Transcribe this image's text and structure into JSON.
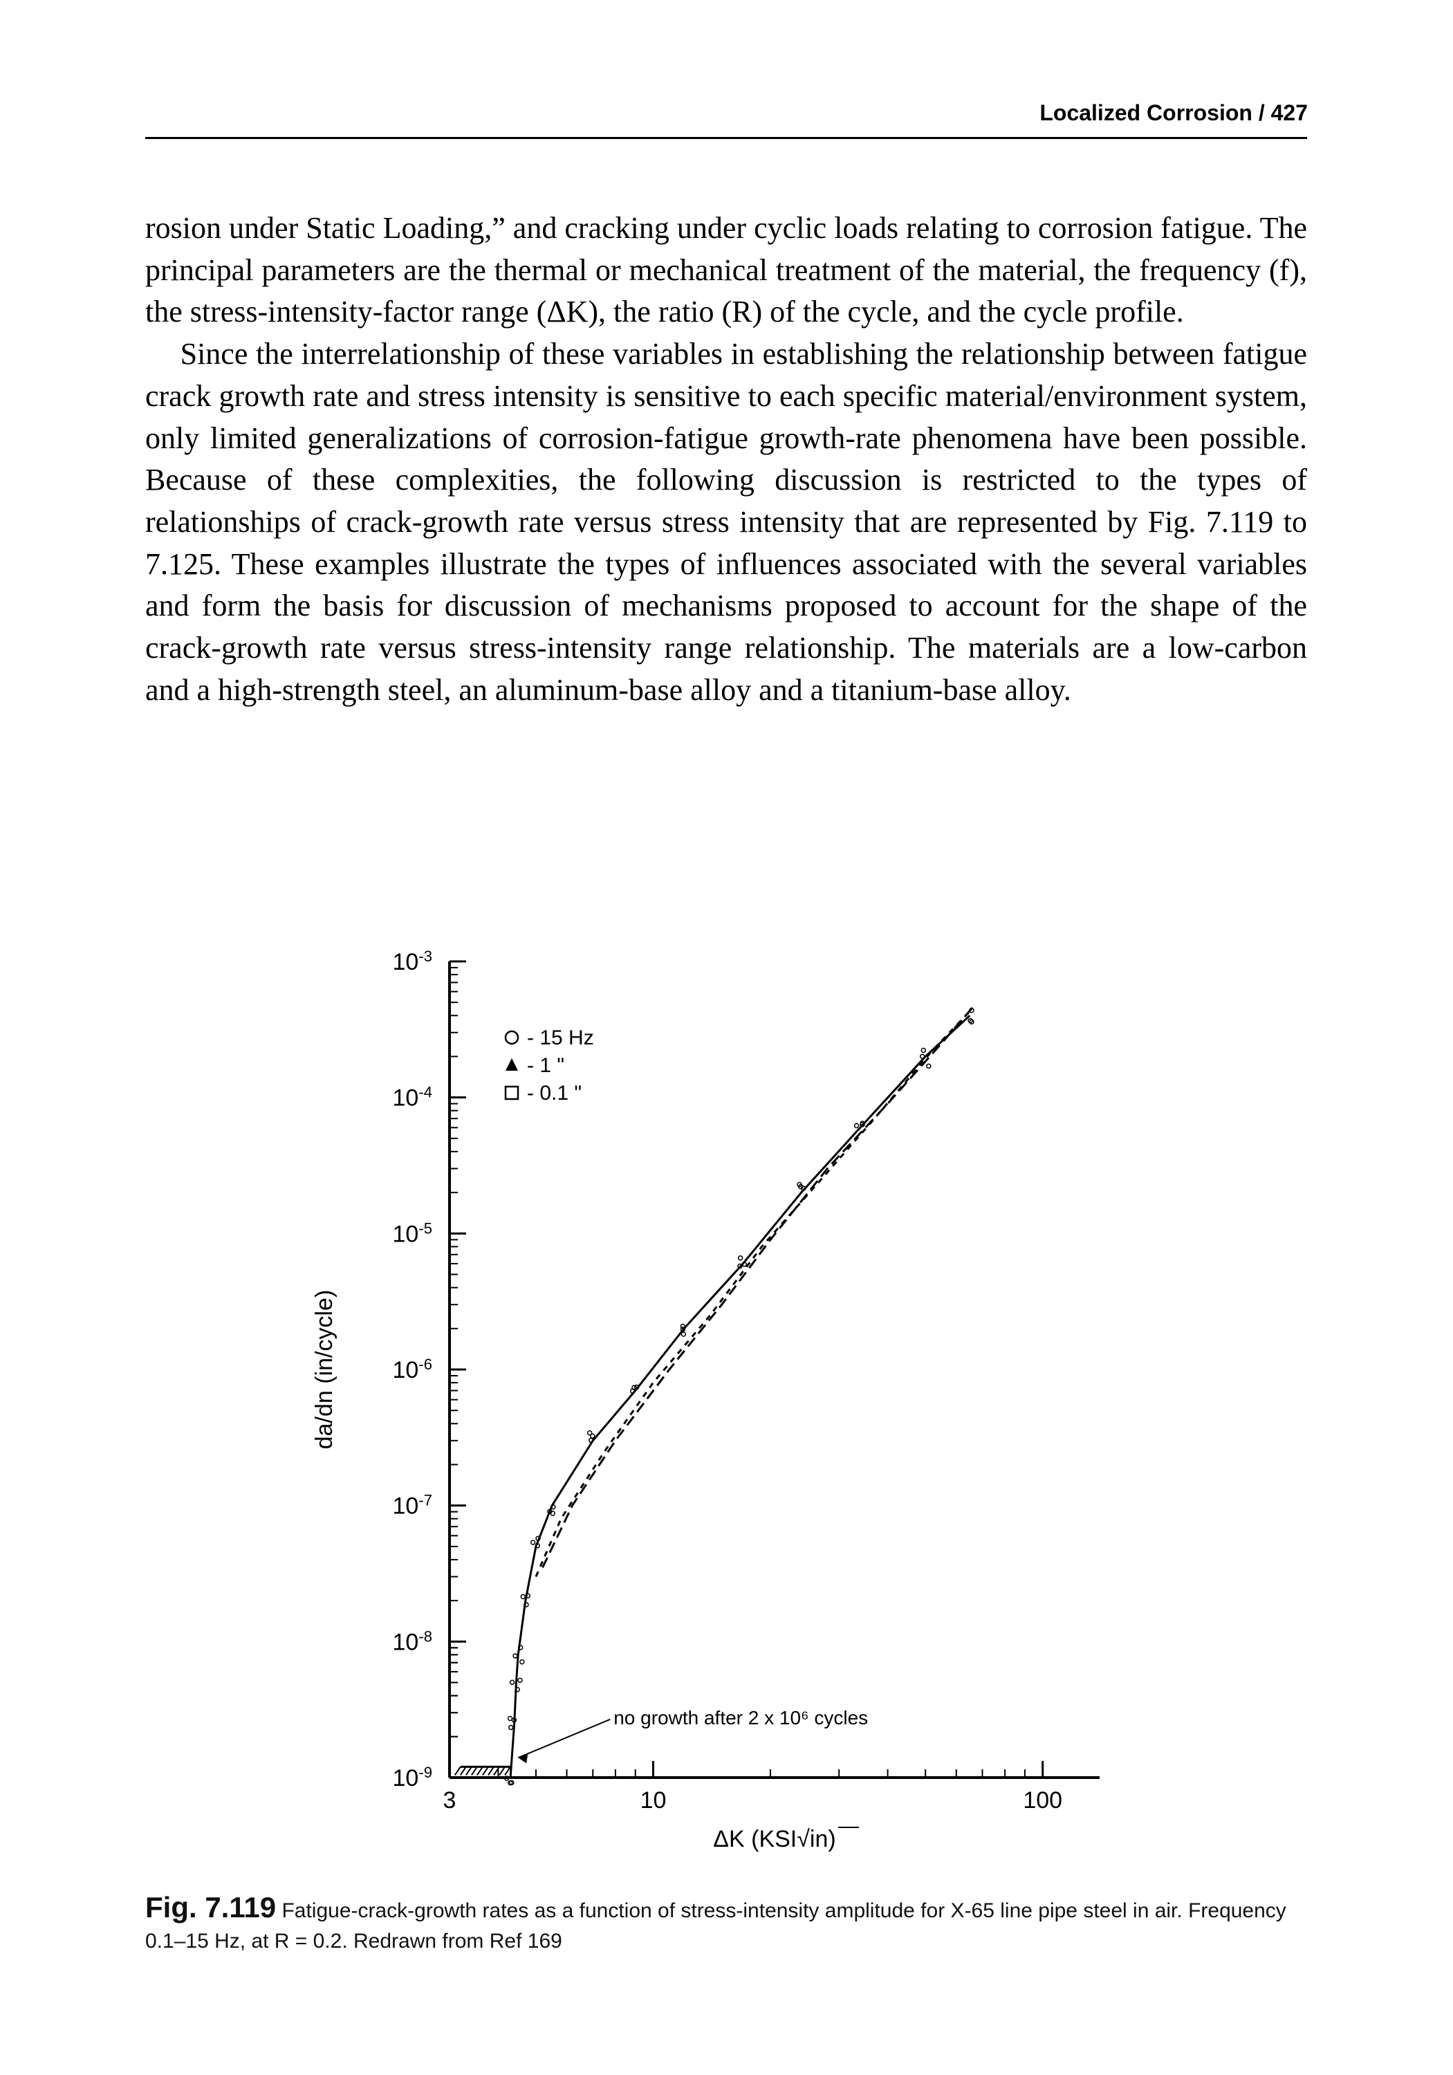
{
  "header": {
    "running_head": "Localized Corrosion / 427"
  },
  "paragraphs": {
    "p1": "rosion under Static Loading,” and cracking under cyclic loads relating to corrosion fatigue. The principal parameters are the thermal or mechanical treatment of the material, the frequency (f), the stress-intensity-factor range (ΔK), the ratio (R) of the cycle, and the cycle profile.",
    "p2": "Since the interrelationship of these variables in establishing the relationship between fatigue crack growth rate and stress intensity is sensitive to each specific material/environment system, only limited generalizations of corrosion-fatigue growth-rate phenomena have been possible. Because of these complexities, the following discussion is restricted to the types of relationships of crack-growth rate versus stress intensity that are represented by Fig. 7.119 to 7.125. These examples illustrate the types of influences associated with the several variables and form the basis for discussion of mechanisms proposed to account for the shape of the crack-growth rate versus stress-intensity range relationship. The materials are a low-carbon and a high-strength steel, an aluminum-base alloy and a titanium-base alloy."
  },
  "figure": {
    "type": "loglog-scatter-line",
    "background_color": "#ffffff",
    "axis_color": "#000000",
    "tick_fontsize": 34,
    "label_fontsize": 34,
    "ylabel": "da/dn  (in/cycle)",
    "xlabel": "ΔK (KSI√in)",
    "xlim": [
      3,
      140
    ],
    "ylim": [
      1e-09,
      0.001
    ],
    "ytick_exponents": [
      -3,
      -4,
      -5,
      -6,
      -7,
      -8,
      -9
    ],
    "xtick_values": [
      3,
      10,
      100
    ],
    "xtick_labels": [
      "3",
      "10",
      "100"
    ],
    "legend": {
      "items": [
        {
          "marker": "circle",
          "label": "15  Hz"
        },
        {
          "marker": "triangle",
          "label": "1     \""
        },
        {
          "marker": "square",
          "label": "0.1  \""
        }
      ],
      "header_sep": "-"
    },
    "no_growth_label": "no growth after 2 x 10⁶  cycles",
    "series": [
      {
        "name": "15 Hz",
        "marker": "circle",
        "dash": "none",
        "color": "#000000",
        "points": [
          [
            4.3,
            1e-09
          ],
          [
            4.4,
            2.5e-09
          ],
          [
            4.45,
            5e-09
          ],
          [
            4.5,
            8e-09
          ],
          [
            4.7,
            2e-08
          ],
          [
            5.0,
            5e-08
          ],
          [
            5.5,
            1e-07
          ],
          [
            7.0,
            3e-07
          ],
          [
            9.0,
            7e-07
          ],
          [
            12,
            2e-06
          ],
          [
            17,
            6e-06
          ],
          [
            24,
            2e-05
          ],
          [
            34,
            6e-05
          ],
          [
            50,
            0.0002
          ],
          [
            65,
            0.0004
          ]
        ]
      },
      {
        "name": "1 Hz",
        "marker": "triangle",
        "dash": "4,4",
        "color": "#000000",
        "points": [
          [
            5.0,
            3e-08
          ],
          [
            5.8,
            8e-08
          ],
          [
            7.5,
            2.5e-07
          ],
          [
            10,
            8e-07
          ],
          [
            14,
            2.5e-06
          ],
          [
            19,
            8e-06
          ],
          [
            27,
            2.5e-05
          ],
          [
            37,
            7e-05
          ],
          [
            52,
            0.00022
          ],
          [
            66,
            0.00045
          ]
        ]
      },
      {
        "name": "0.1 Hz",
        "marker": "square",
        "dash": "8,4",
        "color": "#000000",
        "points": [
          [
            5.2,
            3.5e-08
          ],
          [
            6.2,
            1e-07
          ],
          [
            8.0,
            3e-07
          ],
          [
            11,
            1e-06
          ],
          [
            15,
            3e-06
          ],
          [
            20,
            9e-06
          ],
          [
            28,
            3e-05
          ],
          [
            40,
            9e-05
          ],
          [
            55,
            0.00025
          ],
          [
            67,
            0.00048
          ]
        ]
      }
    ],
    "threshold_bar": {
      "x_range": [
        3.2,
        4.3
      ],
      "y": 1.2e-09
    }
  },
  "caption": {
    "fignum": "Fig. 7.119",
    "line": "Fatigue-crack-growth rates as a function of stress-intensity amplitude for X-65 line pipe steel in air. Frequency 0.1–15 Hz, at R = 0.2. Redrawn from Ref 169"
  }
}
